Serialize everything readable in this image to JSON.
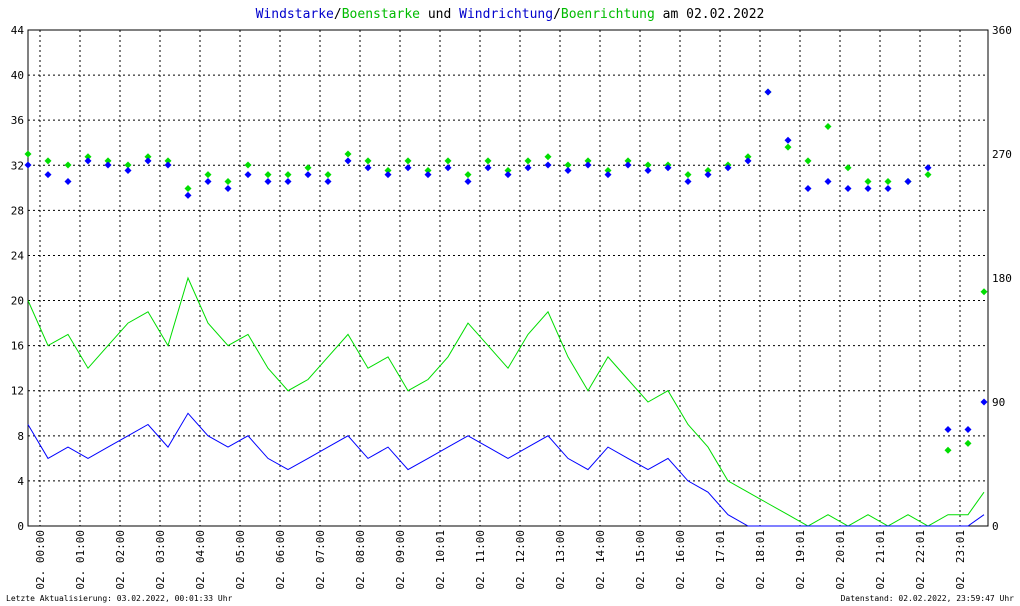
{
  "title": {
    "part1": "Windstarke",
    "slash1": "/",
    "part2": "Boenstarke",
    "part3": " und ",
    "part4": "Windrichtung",
    "slash2": "/",
    "part5": "Boenrichtung",
    "part6": " am 02.02.2022"
  },
  "colors": {
    "wind": "#0000ff",
    "gust": "#00dd00",
    "grid": "#000000",
    "background": "#ffffff"
  },
  "footer": {
    "left": "Letzte Aktualisierung: 03.02.2022, 00:01:33 Uhr",
    "right": "Datenstand: 02.02.2022, 23:59:47 Uhr"
  },
  "chart_data": {
    "type": "line",
    "x_tick_labels": [
      "02. 00:00",
      "02. 01:00",
      "02. 02:00",
      "02. 03:00",
      "02. 04:00",
      "02. 05:00",
      "02. 06:00",
      "02. 07:00",
      "02. 08:00",
      "02. 09:00",
      "02. 10:01",
      "02. 11:00",
      "02. 12:00",
      "02. 13:00",
      "02. 14:00",
      "02. 15:00",
      "02. 16:00",
      "02. 17:01",
      "02. 18:01",
      "02. 19:01",
      "02. 20:01",
      "02. 21:01",
      "02. 22:01",
      "02. 23:01"
    ],
    "xlim_hours": [
      0,
      24
    ],
    "y_left_ticks": [
      "0",
      "4",
      "8",
      "12",
      "16",
      "20",
      "24",
      "28",
      "32",
      "36",
      "40",
      "44"
    ],
    "ylim_left": [
      0,
      44
    ],
    "y_right_ticks": [
      "0",
      "90",
      "180",
      "270",
      "360"
    ],
    "ylim_right": [
      0,
      360
    ],
    "grid": true,
    "series": [
      {
        "name": "Windstarke",
        "axis": "left",
        "style": "line",
        "x_hours": [
          0,
          0.5,
          1,
          1.5,
          2,
          2.5,
          3,
          3.5,
          4,
          4.5,
          5,
          5.5,
          6,
          6.5,
          7,
          7.5,
          8,
          8.5,
          9,
          9.5,
          10,
          10.5,
          11,
          11.5,
          12,
          12.5,
          13,
          13.5,
          14,
          14.5,
          15,
          15.5,
          16,
          16.5,
          17,
          17.5,
          18,
          18.5,
          19,
          19.5,
          20,
          20.5,
          21,
          21.5,
          22,
          22.5,
          23,
          23.5,
          23.9
        ],
        "values": [
          9,
          6,
          7,
          6,
          7,
          8,
          9,
          7,
          10,
          8,
          7,
          8,
          6,
          5,
          6,
          7,
          8,
          6,
          7,
          5,
          6,
          7,
          8,
          7,
          6,
          7,
          8,
          6,
          5,
          7,
          6,
          5,
          6,
          4,
          3,
          1,
          0,
          0,
          0,
          0,
          0,
          0,
          0,
          0,
          0,
          0,
          0,
          0,
          1
        ]
      },
      {
        "name": "Boenstarke",
        "axis": "left",
        "style": "line",
        "x_hours": [
          0,
          0.5,
          1,
          1.5,
          2,
          2.5,
          3,
          3.5,
          4,
          4.5,
          5,
          5.5,
          6,
          6.5,
          7,
          7.5,
          8,
          8.5,
          9,
          9.5,
          10,
          10.5,
          11,
          11.5,
          12,
          12.5,
          13,
          13.5,
          14,
          14.5,
          15,
          15.5,
          16,
          16.5,
          17,
          17.5,
          18,
          18.5,
          19,
          19.5,
          20,
          20.5,
          21,
          21.5,
          22,
          22.5,
          23,
          23.5,
          23.9
        ],
        "values": [
          20,
          16,
          17,
          14,
          16,
          18,
          19,
          16,
          22,
          18,
          16,
          17,
          14,
          12,
          13,
          15,
          17,
          14,
          15,
          12,
          13,
          15,
          18,
          16,
          14,
          17,
          19,
          15,
          12,
          15,
          13,
          11,
          12,
          9,
          7,
          4,
          3,
          2,
          1,
          0,
          1,
          0,
          1,
          0,
          1,
          0,
          1,
          1,
          3
        ]
      },
      {
        "name": "Windrichtung",
        "axis": "right",
        "style": "markers",
        "x_hours": [
          0,
          0.5,
          1,
          1.5,
          2,
          2.5,
          3,
          3.5,
          4,
          4.5,
          5,
          5.5,
          6,
          6.5,
          7,
          7.5,
          8,
          8.5,
          9,
          9.5,
          10,
          10.5,
          11,
          11.5,
          12,
          12.5,
          13,
          13.5,
          14,
          14.5,
          15,
          15.5,
          16,
          16.5,
          17,
          17.5,
          18,
          18.5,
          19,
          19.5,
          20,
          20.5,
          21,
          21.5,
          22,
          22.5,
          23,
          23.5,
          23.9
        ],
        "values": [
          262,
          255,
          250,
          265,
          262,
          258,
          265,
          262,
          240,
          250,
          245,
          255,
          250,
          250,
          255,
          250,
          265,
          260,
          255,
          260,
          255,
          260,
          250,
          260,
          255,
          260,
          262,
          258,
          262,
          255,
          262,
          258,
          260,
          250,
          255,
          260,
          265,
          315,
          280,
          245,
          250,
          245,
          245,
          245,
          250,
          260,
          70,
          70,
          90
        ]
      },
      {
        "name": "Boenrichtung",
        "axis": "right",
        "style": "markers",
        "x_hours": [
          0,
          0.5,
          1,
          1.5,
          2,
          2.5,
          3,
          3.5,
          4,
          4.5,
          5,
          5.5,
          6,
          6.5,
          7,
          7.5,
          8,
          8.5,
          9,
          9.5,
          10,
          10.5,
          11,
          11.5,
          12,
          12.5,
          13,
          13.5,
          14,
          14.5,
          15,
          15.5,
          16,
          16.5,
          17,
          17.5,
          18,
          18.5,
          19,
          19.5,
          20,
          20.5,
          21,
          21.5,
          22,
          22.5,
          23,
          23.5,
          23.9
        ],
        "values": [
          270,
          265,
          262,
          268,
          265,
          262,
          268,
          265,
          245,
          255,
          250,
          262,
          255,
          255,
          260,
          255,
          270,
          265,
          258,
          265,
          258,
          265,
          255,
          265,
          258,
          265,
          268,
          262,
          265,
          258,
          265,
          262,
          262,
          255,
          258,
          262,
          268,
          315,
          275,
          265,
          290,
          260,
          250,
          250,
          250,
          255,
          55,
          60,
          170
        ]
      }
    ]
  }
}
